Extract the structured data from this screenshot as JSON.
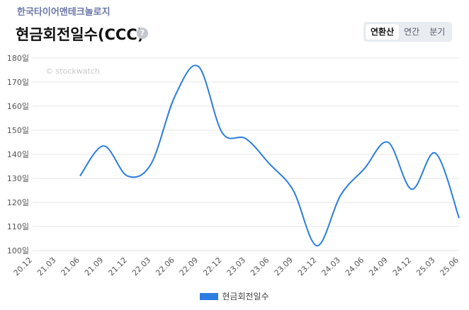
{
  "company_name": "한국타이어앤테크놀로지",
  "page_title": "현금회전일수(CCC)",
  "help_icon": "question-circle-icon",
  "help_glyph": "?",
  "tabs": [
    {
      "label": "연환산",
      "active": true
    },
    {
      "label": "연간",
      "active": false
    },
    {
      "label": "분기",
      "active": false
    }
  ],
  "watermark": "© stockwatch",
  "colors": {
    "line": "#2b7de0",
    "grid": "#e5e5e5",
    "company": "#6b77a8"
  },
  "chart_data": {
    "type": "line",
    "title": "",
    "xlabel": "",
    "ylabel": "",
    "ylim": [
      100,
      180
    ],
    "yticks": [
      100,
      110,
      120,
      130,
      140,
      150,
      160,
      170,
      180
    ],
    "ytick_labels": [
      "100일",
      "110일",
      "120일",
      "130일",
      "140일",
      "150일",
      "160일",
      "170일",
      "180일"
    ],
    "categories": [
      "20.12",
      "21.03",
      "21.06",
      "21.09",
      "21.12",
      "22.03",
      "22.06",
      "22.09",
      "22.12",
      "23.03",
      "23.06",
      "23.09",
      "23.12",
      "24.03",
      "24.06",
      "24.09",
      "24.12",
      "25.03",
      "25.06"
    ],
    "series": [
      {
        "name": "현금회전일수",
        "values": [
          null,
          null,
          131,
          143.5,
          131,
          136,
          164,
          176.5,
          149,
          146.5,
          136,
          125,
          102,
          123,
          134,
          145,
          125.5,
          140.5,
          113.5
        ]
      }
    ],
    "legend": "bottom",
    "grid": true
  }
}
